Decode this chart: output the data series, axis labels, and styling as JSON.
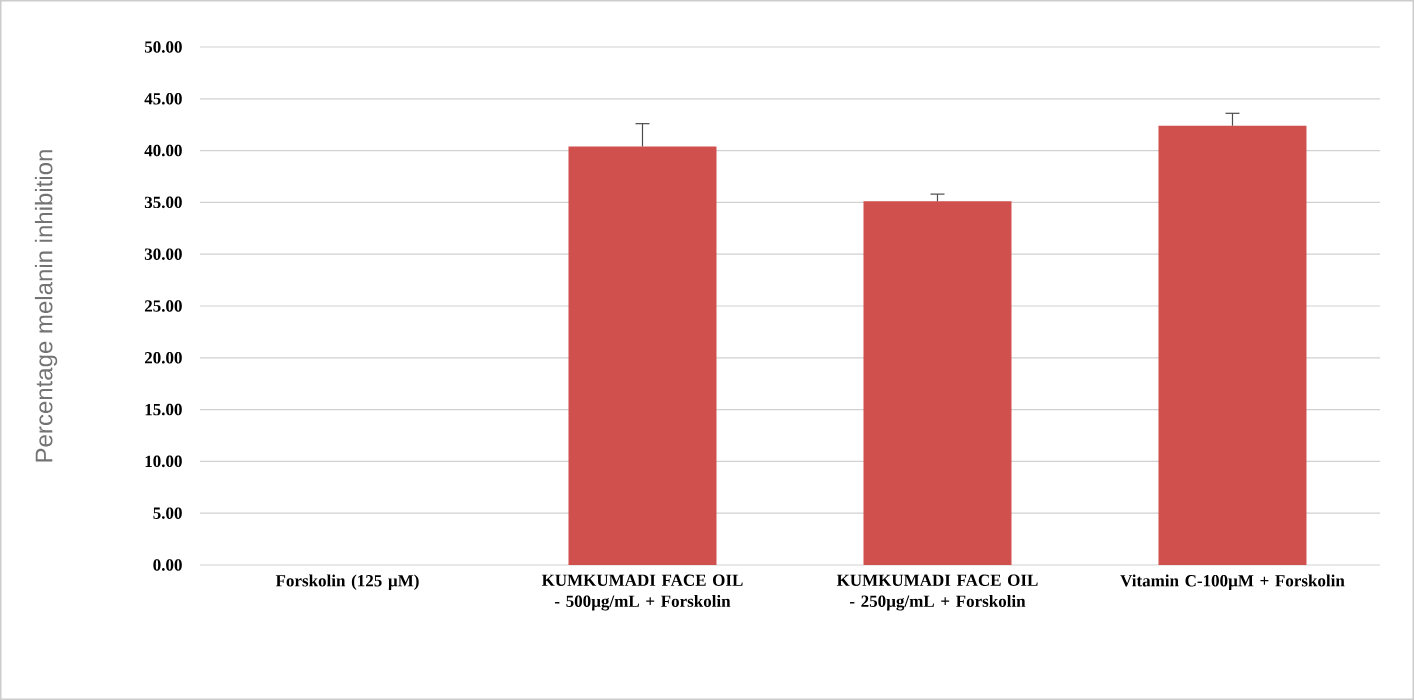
{
  "chart_data": {
    "type": "bar",
    "ylabel": "Percentage melanin inhibition",
    "categories": [
      "Forskolin (125 µM)",
      "KUMKUMADI FACE OIL - 500µg/mL + Forskolin",
      "KUMKUMADI FACE OIL - 250µg/mL + Forskolin",
      "Vitamin C-100µM + Forskolin"
    ],
    "values": [
      0,
      40.4,
      35.1,
      42.4
    ],
    "errors": [
      null,
      2.2,
      0.7,
      1.2
    ],
    "color": "#d0504d",
    "ylim": [
      0,
      50
    ],
    "yticks": [
      {
        "value": 0,
        "label": "0.00"
      },
      {
        "value": 5,
        "label": "5.00"
      },
      {
        "value": 10,
        "label": "10.00"
      },
      {
        "value": 15,
        "label": "15.00"
      },
      {
        "value": 20,
        "label": "20.00"
      },
      {
        "value": 25,
        "label": "25.00"
      },
      {
        "value": 30,
        "label": "30.00"
      },
      {
        "value": 35,
        "label": "35.00"
      },
      {
        "value": 40,
        "label": "40.00"
      },
      {
        "value": 45,
        "label": "45.00"
      },
      {
        "value": 50,
        "label": "50.00"
      }
    ],
    "grid": "y"
  }
}
